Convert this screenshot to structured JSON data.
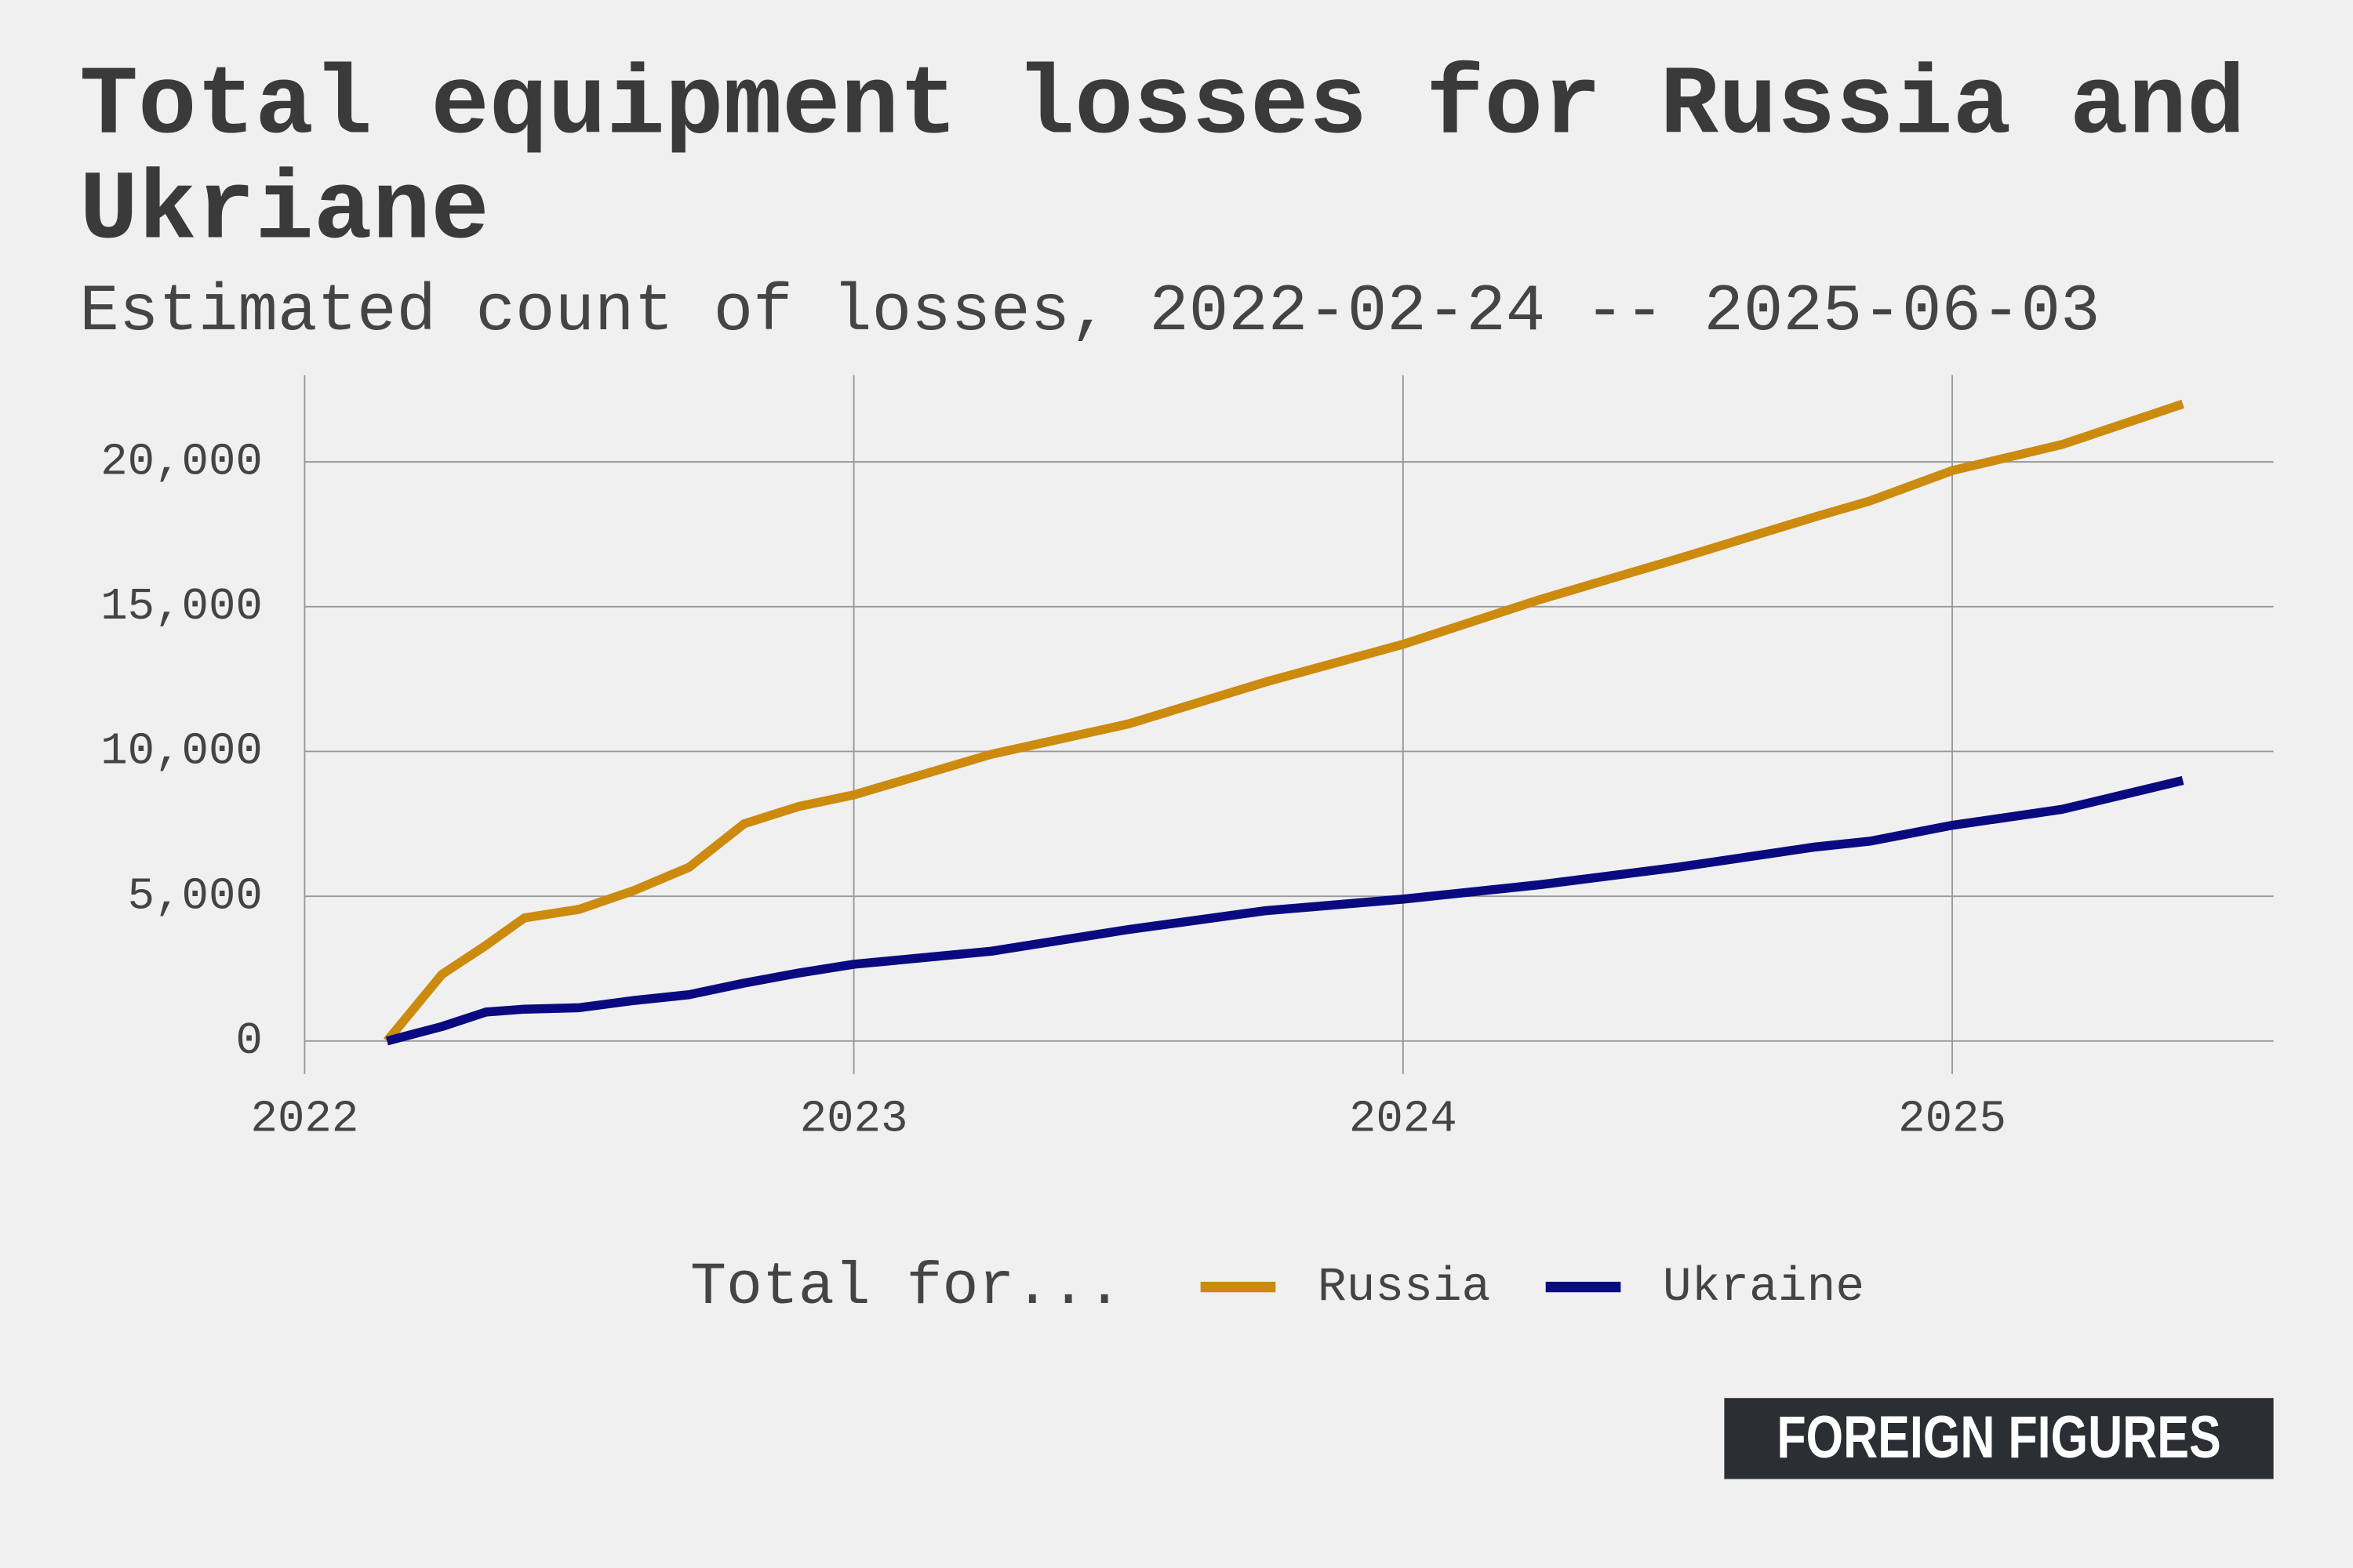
{
  "chart_data": {
    "type": "line",
    "title": "Total equipment losses for Russia and Ukriane",
    "subtitle": "Estimated count of losses, 2022-02-24 -- 2025-06-03",
    "legend_title": "Total for...",
    "x": [
      2022.15,
      2022.25,
      2022.33,
      2022.4,
      2022.5,
      2022.6,
      2022.7,
      2022.8,
      2022.9,
      2023.0,
      2023.25,
      2023.5,
      2023.75,
      2024.0,
      2024.25,
      2024.5,
      2024.75,
      2024.85,
      2025.0,
      2025.2,
      2025.42
    ],
    "series": [
      {
        "name": "Russia",
        "color": "#cc8a0e",
        "values": [
          0,
          2300,
          3300,
          4250,
          4550,
          5200,
          6000,
          7500,
          8100,
          8500,
          9900,
          10950,
          12400,
          13700,
          15250,
          16650,
          18100,
          18650,
          19700,
          20600,
          22000
        ]
      },
      {
        "name": "Ukraine",
        "color": "#0a0a80",
        "values": [
          0,
          500,
          1000,
          1100,
          1150,
          1400,
          1600,
          2000,
          2350,
          2650,
          3100,
          3850,
          4500,
          4900,
          5400,
          6000,
          6700,
          6900,
          7450,
          8000,
          9000
        ]
      }
    ],
    "xlim": [
      2022,
      2025.585
    ],
    "xticks": [
      2022,
      2023,
      2024,
      2025
    ],
    "ylim": [
      0,
      23000
    ],
    "yticks": [
      0,
      {
        "value": 5000,
        "label": "5,000"
      },
      {
        "value": 10000,
        "label": "10,000"
      },
      {
        "value": 15000,
        "label": "15,000"
      },
      {
        "value": 20000,
        "label": "20,000"
      }
    ],
    "grid": true,
    "legend": "bottom"
  },
  "logo": "FOREIGN FIGURES"
}
